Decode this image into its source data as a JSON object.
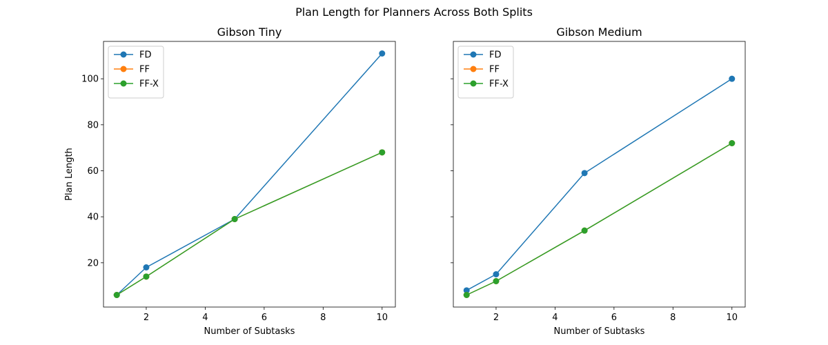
{
  "figure": {
    "suptitle": "Plan Length for Planners Across Both Splits"
  },
  "chart_data": [
    {
      "type": "line",
      "title": "Gibson Tiny",
      "xlabel": "Number of Subtasks",
      "ylabel": "Plan Length",
      "xlim": [
        0.55,
        10.45
      ],
      "ylim": [
        0.75,
        116.25
      ],
      "xticks": [
        2,
        4,
        6,
        8,
        10
      ],
      "yticks": [
        20,
        40,
        60,
        80,
        100
      ],
      "show_ytick_labels": true,
      "grid": false,
      "legend": "upper-left",
      "x": [
        1,
        2,
        5,
        10
      ],
      "series": [
        {
          "name": "FD",
          "color": "#1f77b4",
          "values": [
            6,
            18,
            39,
            111
          ]
        },
        {
          "name": "FF",
          "color": "#ff7f0e",
          "values": [
            6,
            14,
            39,
            68
          ]
        },
        {
          "name": "FF-X",
          "color": "#2ca02c",
          "values": [
            6,
            14,
            39,
            68
          ]
        }
      ]
    },
    {
      "type": "line",
      "title": "Gibson Medium",
      "xlabel": "Number of Subtasks",
      "ylabel": "",
      "xlim": [
        0.55,
        10.45
      ],
      "ylim": [
        0.75,
        116.25
      ],
      "xticks": [
        2,
        4,
        6,
        8,
        10
      ],
      "yticks": [
        20,
        40,
        60,
        80,
        100
      ],
      "show_ytick_labels": false,
      "grid": false,
      "legend": "upper-left",
      "x": [
        1,
        2,
        5,
        10
      ],
      "series": [
        {
          "name": "FD",
          "color": "#1f77b4",
          "values": [
            8,
            15,
            59,
            100
          ]
        },
        {
          "name": "FF",
          "color": "#ff7f0e",
          "values": [
            6,
            12,
            34,
            72
          ]
        },
        {
          "name": "FF-X",
          "color": "#2ca02c",
          "values": [
            6,
            12,
            34,
            72
          ]
        }
      ]
    }
  ]
}
